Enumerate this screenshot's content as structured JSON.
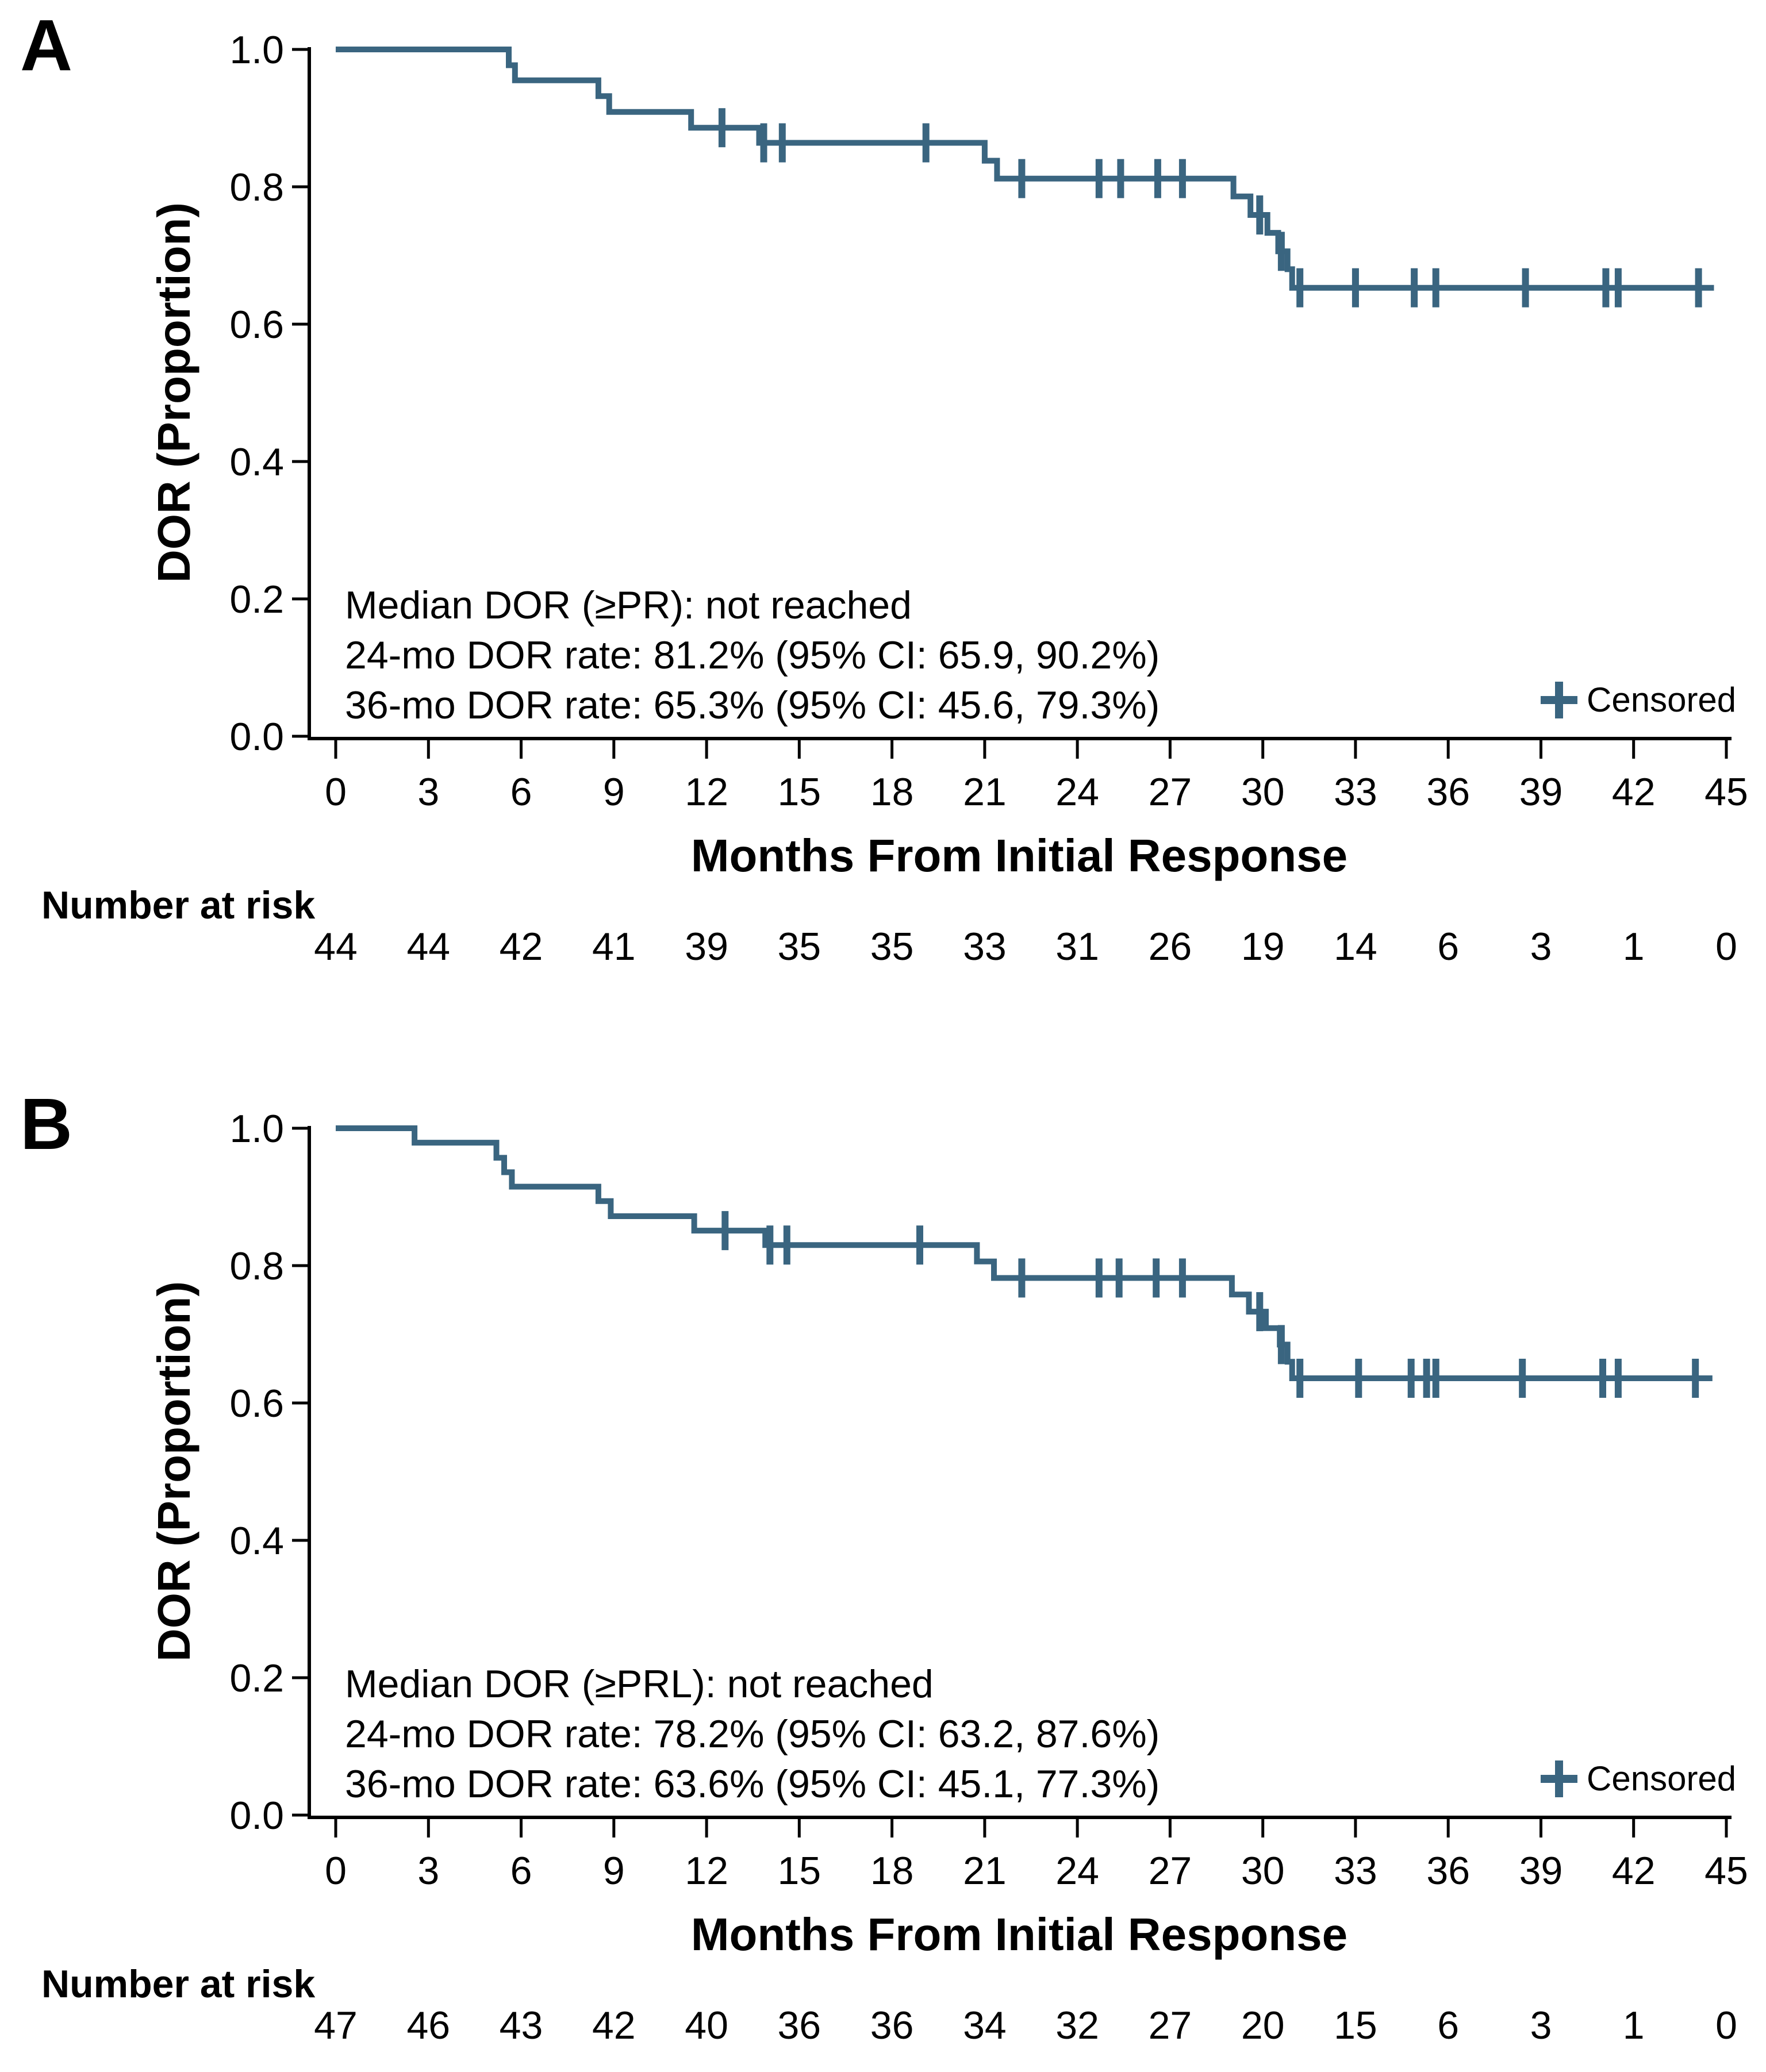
{
  "figure": {
    "background": "#ffffff",
    "curve_color": "#3A6580",
    "panel_label_color": "#4A7190",
    "panels": [
      {
        "label": "A",
        "y_axis_title": "DOR (Proportion)",
        "x_axis_title": "Months From Initial Response",
        "annotation_lines": [
          "Median DOR (≥PR): not reached",
          "24-mo DOR rate: 81.2% (95% CI: 65.9, 90.2%)",
          "36-mo DOR rate: 65.3% (95% CI: 45.6, 79.3%)"
        ],
        "legend_label": "Censored",
        "number_at_risk_label": "Number at risk"
      },
      {
        "label": "B",
        "y_axis_title": "DOR (Proportion)",
        "x_axis_title": "Months From Initial Response",
        "annotation_lines": [
          "Median DOR (≥PRL): not reached",
          "24-mo DOR rate: 78.2% (95% CI: 63.2, 87.6%)",
          "36-mo DOR rate: 63.6% (95% CI: 45.1, 77.3%)"
        ],
        "legend_label": "Censored",
        "number_at_risk_label": "Number at risk"
      }
    ]
  },
  "chart_data": [
    {
      "type": "line",
      "subtype": "kaplan-meier-step",
      "panel": "A",
      "title": "",
      "xlabel": "Months From Initial Response",
      "ylabel": "DOR (Proportion)",
      "xlim": [
        0,
        45
      ],
      "ylim": [
        0.0,
        1.0
      ],
      "x_ticks": [
        0,
        3,
        6,
        9,
        12,
        15,
        18,
        21,
        24,
        27,
        30,
        33,
        36,
        39,
        42,
        45
      ],
      "y_ticks": [
        1.0,
        0.8,
        0.6,
        0.4,
        0.2,
        0.0
      ],
      "grid": false,
      "legend_position": "inside-bottom-right",
      "line_color": "#3A6580",
      "start": [
        0,
        1.0
      ],
      "end_time": 44.6,
      "steps": [
        [
          5.6,
          0.977
        ],
        [
          5.8,
          0.955
        ],
        [
          8.5,
          0.932
        ],
        [
          8.85,
          0.909
        ],
        [
          11.5,
          0.886
        ],
        [
          13.7,
          0.864
        ],
        [
          21.0,
          0.838
        ],
        [
          21.4,
          0.812
        ],
        [
          29.05,
          0.786
        ],
        [
          29.6,
          0.759
        ],
        [
          30.15,
          0.733
        ],
        [
          30.5,
          0.706
        ],
        [
          30.8,
          0.68
        ],
        [
          30.95,
          0.653
        ]
      ],
      "censors": [
        [
          12.5,
          0.886
        ],
        [
          13.85,
          0.864
        ],
        [
          14.45,
          0.864
        ],
        [
          19.1,
          0.864
        ],
        [
          22.2,
          0.812
        ],
        [
          24.7,
          0.812
        ],
        [
          25.4,
          0.812
        ],
        [
          26.6,
          0.812
        ],
        [
          27.4,
          0.812
        ],
        [
          29.9,
          0.759
        ],
        [
          30.6,
          0.706
        ],
        [
          31.2,
          0.653
        ],
        [
          33.0,
          0.653
        ],
        [
          34.9,
          0.653
        ],
        [
          35.6,
          0.653
        ],
        [
          38.5,
          0.653
        ],
        [
          41.1,
          0.653
        ],
        [
          41.5,
          0.653
        ],
        [
          44.1,
          0.653
        ]
      ],
      "number_at_risk": {
        "times": [
          0,
          3,
          6,
          9,
          12,
          15,
          18,
          21,
          24,
          27,
          30,
          33,
          36,
          39,
          42,
          45
        ],
        "counts": [
          44,
          44,
          42,
          41,
          39,
          35,
          35,
          33,
          31,
          26,
          19,
          14,
          6,
          3,
          1,
          0
        ]
      },
      "stats": {
        "median": "not reached",
        "rate_24mo_pct": 81.2,
        "ci_24mo": [
          65.9,
          90.2
        ],
        "rate_36mo_pct": 65.3,
        "ci_36mo": [
          45.6,
          79.3
        ]
      }
    },
    {
      "type": "line",
      "subtype": "kaplan-meier-step",
      "panel": "B",
      "title": "",
      "xlabel": "Months From Initial Response",
      "ylabel": "DOR (Proportion)",
      "xlim": [
        0,
        45
      ],
      "ylim": [
        0.0,
        1.0
      ],
      "x_ticks": [
        0,
        3,
        6,
        9,
        12,
        15,
        18,
        21,
        24,
        27,
        30,
        33,
        36,
        39,
        42,
        45
      ],
      "y_ticks": [
        1.0,
        0.8,
        0.6,
        0.4,
        0.2,
        0.0
      ],
      "grid": false,
      "legend_position": "inside-bottom-right",
      "line_color": "#3A6580",
      "start": [
        0,
        1.0
      ],
      "end_time": 44.55,
      "steps": [
        [
          2.55,
          0.979
        ],
        [
          5.2,
          0.957
        ],
        [
          5.45,
          0.936
        ],
        [
          5.7,
          0.915
        ],
        [
          8.5,
          0.894
        ],
        [
          8.9,
          0.872
        ],
        [
          11.6,
          0.851
        ],
        [
          13.9,
          0.83
        ],
        [
          20.75,
          0.806
        ],
        [
          21.3,
          0.782
        ],
        [
          29.0,
          0.758
        ],
        [
          29.55,
          0.733
        ],
        [
          30.1,
          0.709
        ],
        [
          30.55,
          0.685
        ],
        [
          30.8,
          0.66
        ],
        [
          30.95,
          0.636
        ]
      ],
      "censors": [
        [
          12.6,
          0.851
        ],
        [
          14.05,
          0.83
        ],
        [
          14.6,
          0.83
        ],
        [
          18.9,
          0.83
        ],
        [
          22.2,
          0.782
        ],
        [
          24.7,
          0.782
        ],
        [
          25.35,
          0.782
        ],
        [
          26.55,
          0.782
        ],
        [
          27.4,
          0.782
        ],
        [
          29.9,
          0.733
        ],
        [
          30.6,
          0.685
        ],
        [
          31.2,
          0.636
        ],
        [
          33.1,
          0.636
        ],
        [
          34.8,
          0.636
        ],
        [
          35.3,
          0.636
        ],
        [
          35.6,
          0.636
        ],
        [
          38.4,
          0.636
        ],
        [
          41.0,
          0.636
        ],
        [
          41.5,
          0.636
        ],
        [
          44.0,
          0.636
        ]
      ],
      "number_at_risk": {
        "times": [
          0,
          3,
          6,
          9,
          12,
          15,
          18,
          21,
          24,
          27,
          30,
          33,
          36,
          39,
          42,
          45
        ],
        "counts": [
          47,
          46,
          43,
          42,
          40,
          36,
          36,
          34,
          32,
          27,
          20,
          15,
          6,
          3,
          1,
          0
        ]
      },
      "stats": {
        "median": "not reached",
        "rate_24mo_pct": 78.2,
        "ci_24mo": [
          63.2,
          87.6
        ],
        "rate_36mo_pct": 63.6,
        "ci_36mo": [
          45.1,
          77.3
        ]
      }
    }
  ]
}
